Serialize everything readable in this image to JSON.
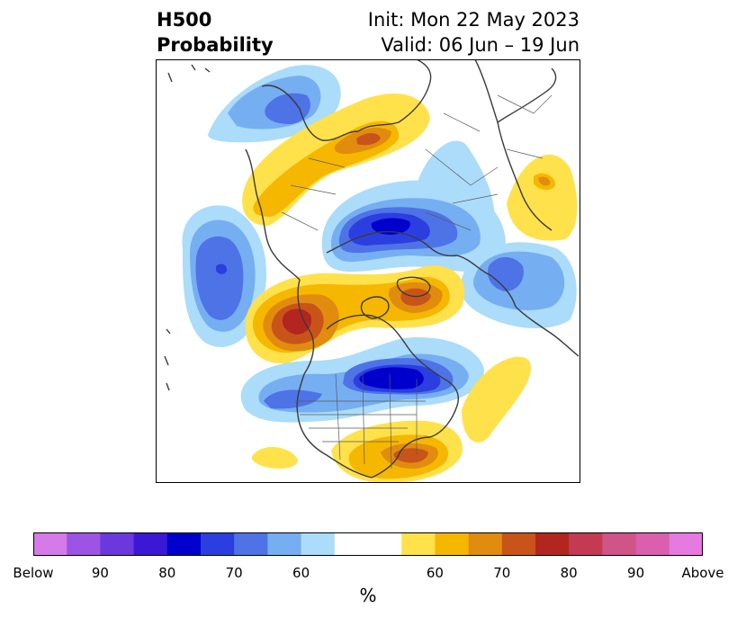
{
  "title": {
    "left_line1": "H500",
    "left_line2": "Probability",
    "right_line1": "Init: Mon 22 May 2023",
    "right_line2": "Valid: 06 Jun – 19 Jun"
  },
  "colorbar": {
    "colors": [
      "#d67ae9",
      "#9b54e3",
      "#6a38dc",
      "#3a18d6",
      "#0000cc",
      "#2b3fe0",
      "#4d73e6",
      "#76aef2",
      "#abdcfa",
      "#ffffff",
      "#ffffff",
      "#ffe24b",
      "#f6b700",
      "#e18c0e",
      "#c9541a",
      "#b3261f",
      "#c33a52",
      "#cf5488",
      "#da60ae",
      "#e67ae0"
    ],
    "tick_labels": [
      "Below",
      "90",
      "80",
      "70",
      "60",
      "60",
      "70",
      "80",
      "90",
      "Above"
    ],
    "unit": "%"
  },
  "palette": {
    "blue_light": "#abdcfa",
    "blue_mid": "#76aef2",
    "blue": "#4d73e6",
    "blue_deep": "#2b3fe0",
    "blue_darkest": "#0000cc",
    "yellow": "#ffe24b",
    "orange_light": "#f6b700",
    "orange": "#e18c0e",
    "orange_dark": "#c9541a",
    "red": "#b3261f",
    "coast": "#3a3a3a"
  }
}
